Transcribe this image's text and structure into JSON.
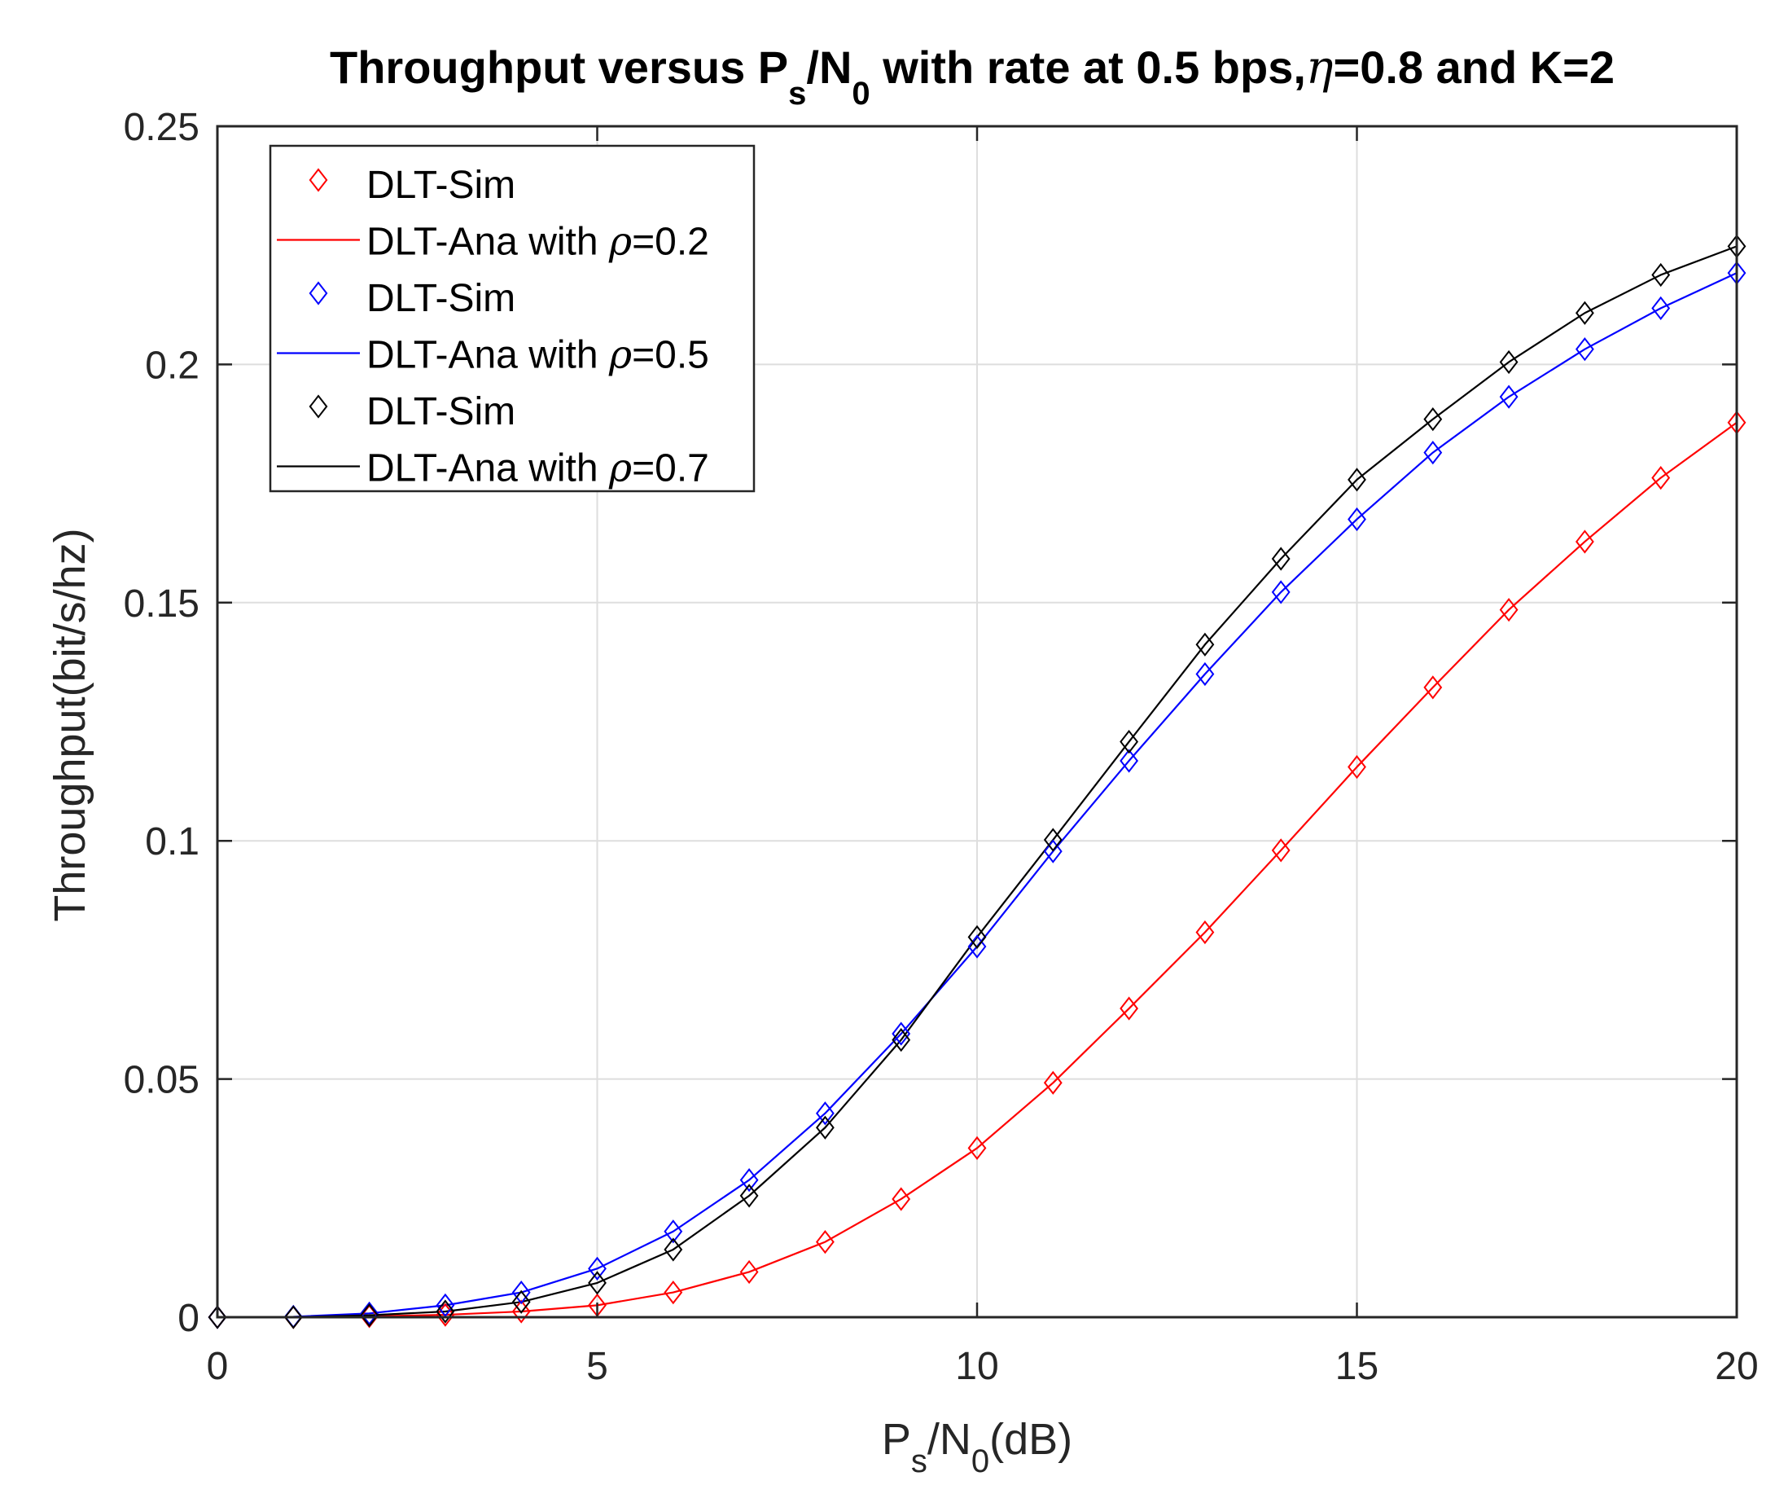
{
  "chart_data": {
    "type": "line",
    "title": {
      "prefix": "Throughput versus P",
      "sub1": "s",
      "mid": "/N",
      "sub2": "0",
      "after": " with rate at 0.5 bps,",
      "greek": "η",
      "suffix": "=0.8 and K=2"
    },
    "xlabel": {
      "main1": "P",
      "sub1": "s",
      "main2": "/N",
      "sub2": "0",
      "main3": "(dB)"
    },
    "ylabel": "Throughput(bit/s/hz)",
    "xlim": [
      0,
      20
    ],
    "ylim": [
      0,
      0.25
    ],
    "xticks": [
      0,
      5,
      10,
      15,
      20
    ],
    "xtick_labels": [
      "0",
      "5",
      "10",
      "15",
      "20"
    ],
    "yticks": [
      0,
      0.05,
      0.1,
      0.15,
      0.2,
      0.25
    ],
    "ytick_labels": [
      "0",
      "0.05",
      "0.1",
      "0.15",
      "0.2",
      "0.25"
    ],
    "grid": true,
    "legend_position": "top-left",
    "x": [
      0,
      1,
      2,
      3,
      4,
      5,
      6,
      7,
      8,
      9,
      10,
      11,
      12,
      13,
      14,
      15,
      16,
      17,
      18,
      19,
      20
    ],
    "series": [
      {
        "name": "DLT-Sim",
        "style": "markers",
        "marker": "diamond",
        "color": "#ff0000",
        "values": [
          0,
          0,
          0.0002,
          0.0005,
          0.0012,
          0.0025,
          0.0052,
          0.0095,
          0.0158,
          0.0248,
          0.0355,
          0.0492,
          0.0648,
          0.0808,
          0.098,
          0.1155,
          0.1322,
          0.1485,
          0.1628,
          0.1762,
          0.1878
        ]
      },
      {
        "name": "DLT-Ana with ",
        "greek": "ρ",
        "param": "=0.2",
        "style": "line",
        "color": "#ff0000",
        "values": [
          0,
          0,
          0.0002,
          0.0005,
          0.0012,
          0.0025,
          0.0052,
          0.0095,
          0.0158,
          0.0248,
          0.0355,
          0.0492,
          0.0648,
          0.0808,
          0.098,
          0.1155,
          0.1322,
          0.1485,
          0.1628,
          0.1762,
          0.1878
        ]
      },
      {
        "name": "DLT-Sim",
        "style": "markers",
        "marker": "diamond",
        "color": "#0000ff",
        "values": [
          0,
          0.0001,
          0.0008,
          0.0025,
          0.0052,
          0.0102,
          0.018,
          0.0288,
          0.0428,
          0.0595,
          0.0778,
          0.0978,
          0.1168,
          0.135,
          0.1522,
          0.1675,
          0.1815,
          0.1932,
          0.2032,
          0.2118,
          0.2192
        ]
      },
      {
        "name": "DLT-Ana with ",
        "greek": "ρ",
        "param": "=0.5",
        "style": "line",
        "color": "#0000ff",
        "values": [
          0,
          0.0001,
          0.0008,
          0.0025,
          0.0052,
          0.0102,
          0.018,
          0.0288,
          0.0428,
          0.0595,
          0.0778,
          0.0978,
          0.1168,
          0.135,
          0.1522,
          0.1675,
          0.1815,
          0.1932,
          0.2032,
          0.2118,
          0.2192
        ]
      },
      {
        "name": "DLT-Sim",
        "style": "markers",
        "marker": "diamond",
        "color": "#000000",
        "values": [
          0,
          0,
          0.0004,
          0.0012,
          0.0032,
          0.0072,
          0.0142,
          0.0255,
          0.0398,
          0.0582,
          0.0798,
          0.1002,
          0.1208,
          0.1412,
          0.1592,
          0.1758,
          0.1885,
          0.2005,
          0.2108,
          0.2188,
          0.2248
        ]
      },
      {
        "name": "DLT-Ana with ",
        "greek": "ρ",
        "param": "=0.7",
        "style": "line",
        "color": "#000000",
        "values": [
          0,
          0,
          0.0004,
          0.0012,
          0.0032,
          0.0072,
          0.0142,
          0.0255,
          0.0398,
          0.0582,
          0.0798,
          0.1002,
          0.1208,
          0.1412,
          0.1592,
          0.1758,
          0.1885,
          0.2005,
          0.2108,
          0.2188,
          0.2248
        ]
      }
    ]
  }
}
